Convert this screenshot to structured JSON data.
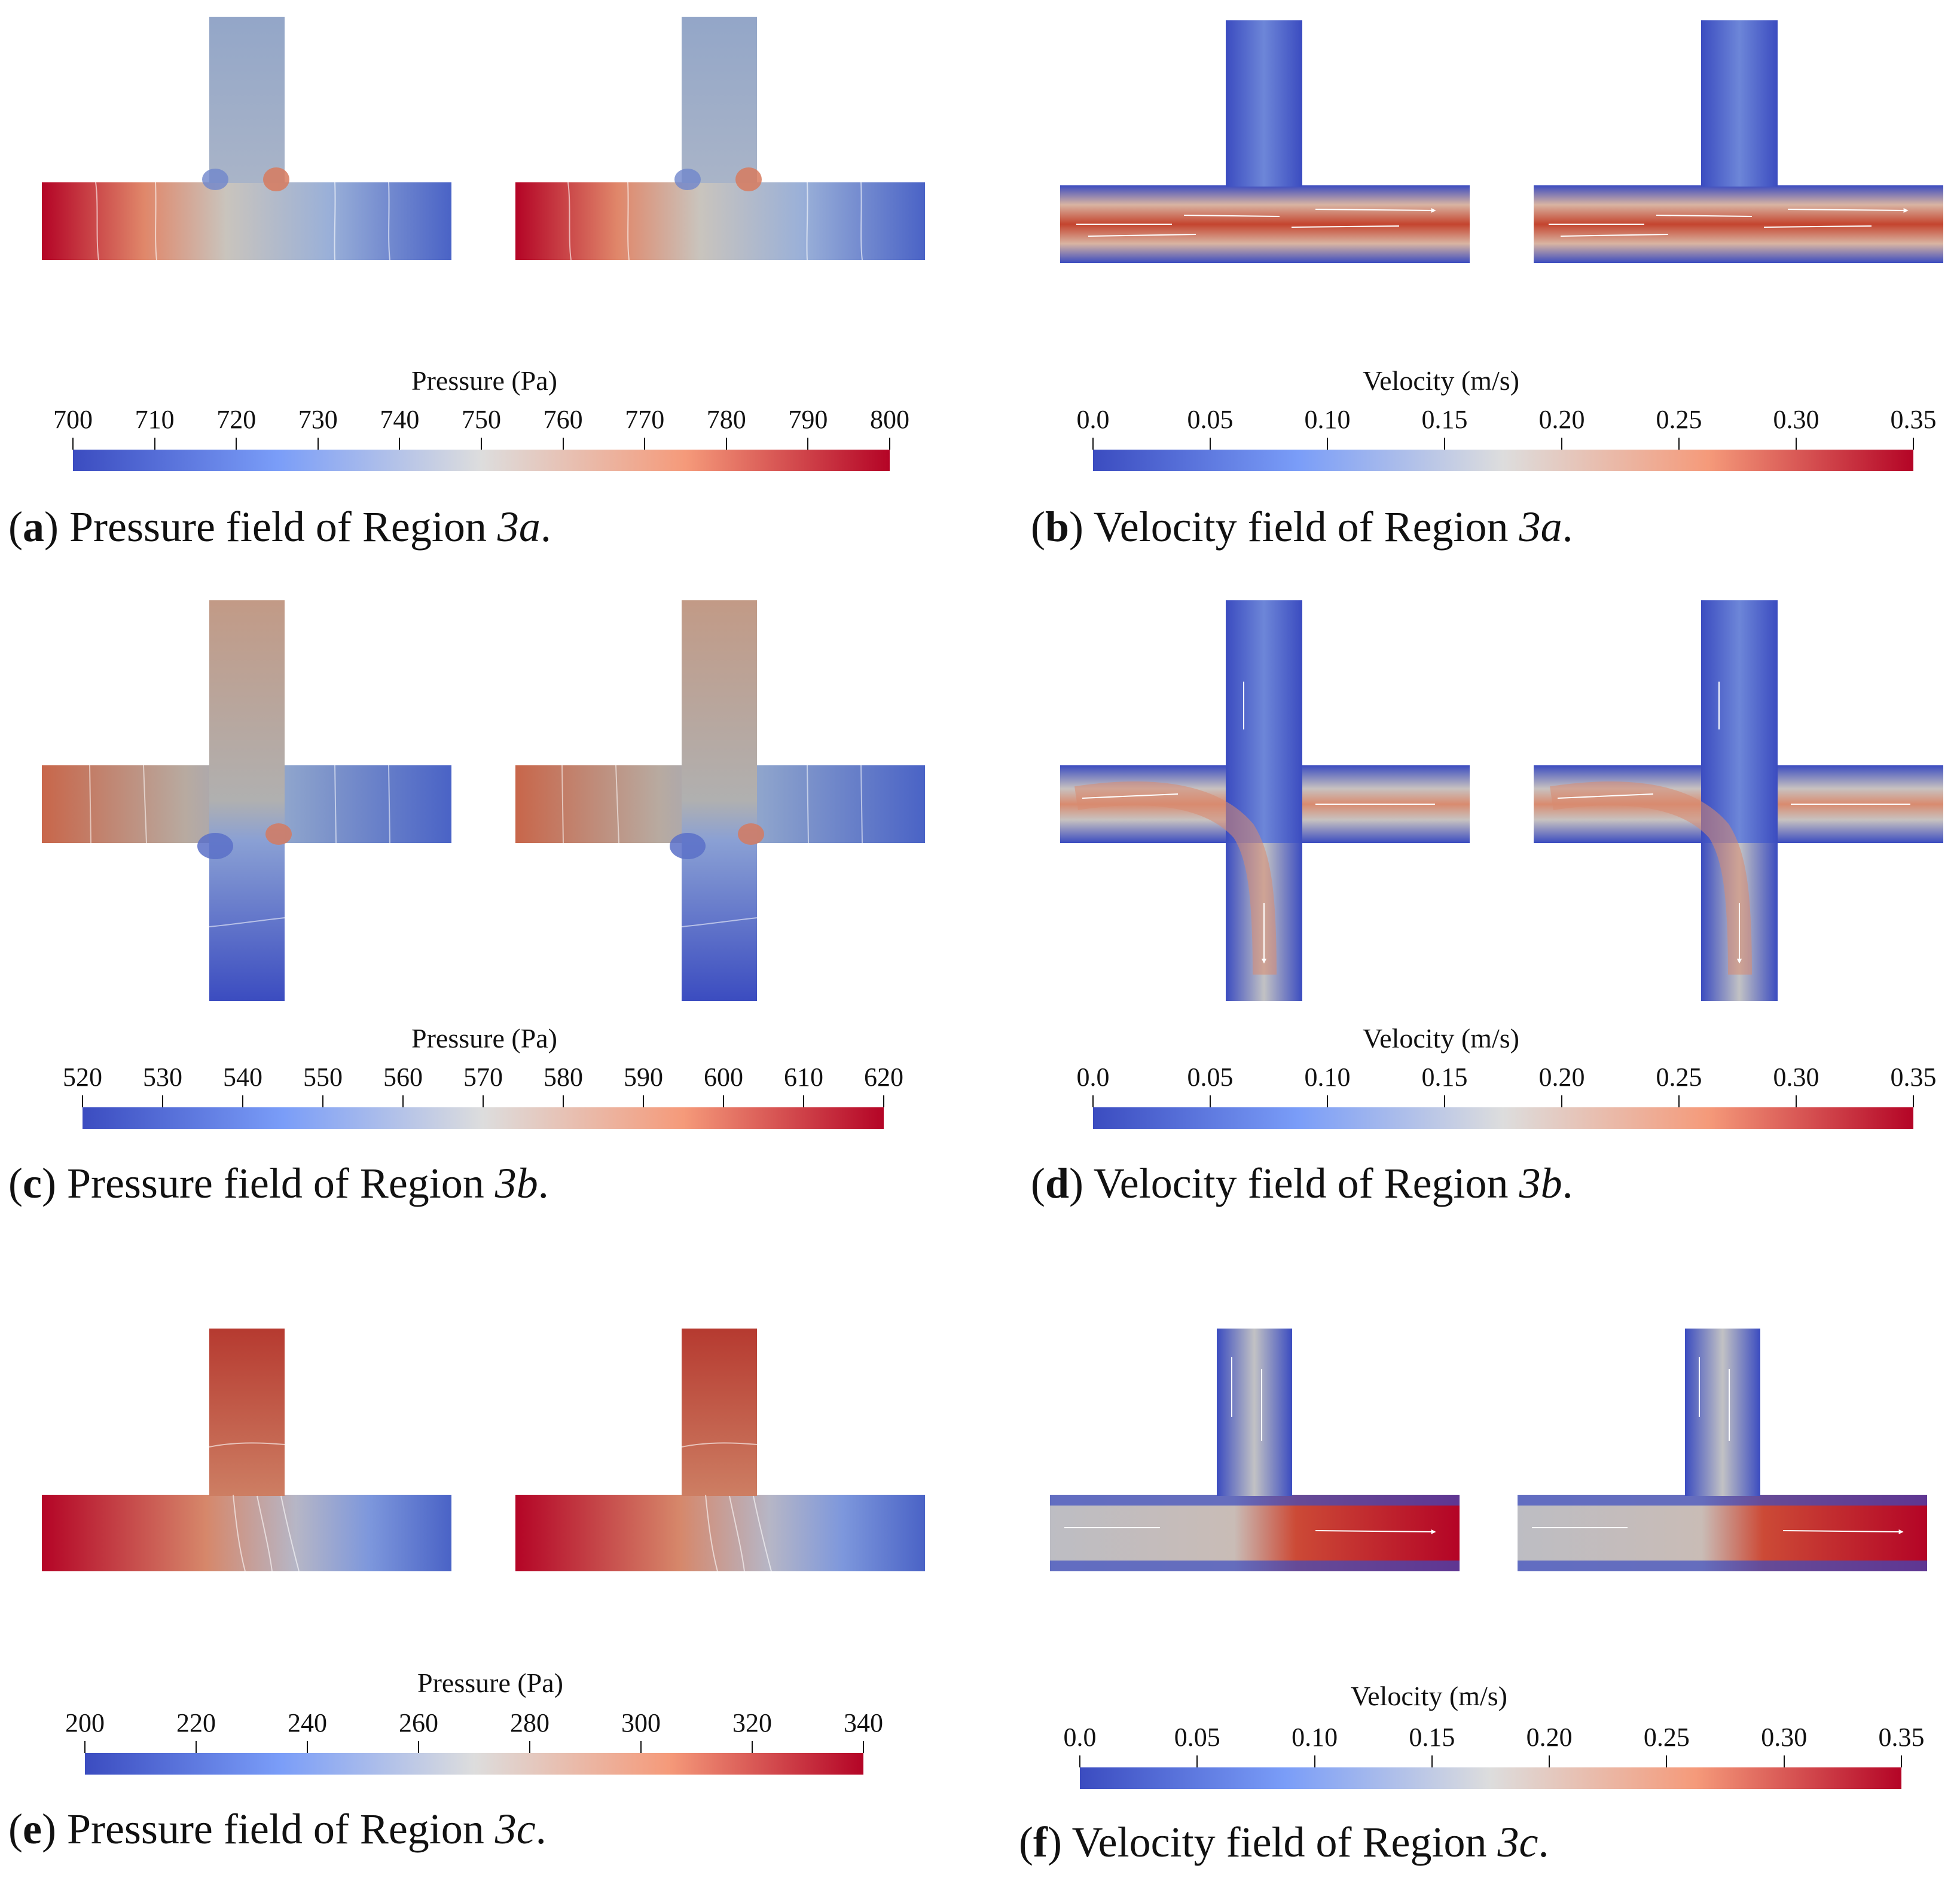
{
  "colors": {
    "low": "#3b4cc0",
    "mid": "#dddddd",
    "high": "#b40426"
  },
  "panels": [
    {
      "id": "a",
      "letter": "a",
      "caption_text": " Pressure field of Region ",
      "region": "3a",
      "field": "pressure",
      "geometry": "tee-up",
      "colorbar": {
        "title": "Pressure (Pa)",
        "ticks": [
          "700",
          "710",
          "720",
          "730",
          "740",
          "750",
          "760",
          "770",
          "780",
          "790",
          "800"
        ]
      }
    },
    {
      "id": "b",
      "letter": "b",
      "caption_text": " Velocity field of Region ",
      "region": "3a",
      "field": "velocity",
      "geometry": "tee-up",
      "colorbar": {
        "title": "Velocity (m/s)",
        "ticks": [
          "0.0",
          "0.05",
          "0.10",
          "0.15",
          "0.20",
          "0.25",
          "0.30",
          "0.35"
        ]
      }
    },
    {
      "id": "c",
      "letter": "c",
      "caption_text": " Pressure field of Region ",
      "region": "3b",
      "field": "pressure",
      "geometry": "cross",
      "colorbar": {
        "title": "Pressure (Pa)",
        "ticks": [
          "520",
          "530",
          "540",
          "550",
          "560",
          "570",
          "580",
          "590",
          "600",
          "610",
          "620"
        ]
      }
    },
    {
      "id": "d",
      "letter": "d",
      "caption_text": " Velocity field of Region ",
      "region": "3b",
      "field": "velocity",
      "geometry": "cross",
      "colorbar": {
        "title": "Velocity (m/s)",
        "ticks": [
          "0.0",
          "0.05",
          "0.10",
          "0.15",
          "0.20",
          "0.25",
          "0.30",
          "0.35"
        ]
      }
    },
    {
      "id": "e",
      "letter": "e",
      "caption_text": " Pressure field of Region ",
      "region": "3c",
      "field": "pressure",
      "geometry": "tee-up",
      "colorbar": {
        "title": "Pressure (Pa)",
        "ticks": [
          "200",
          "220",
          "240",
          "260",
          "280",
          "300",
          "320",
          "340"
        ]
      }
    },
    {
      "id": "f",
      "letter": "f",
      "caption_text": " Velocity field of Region ",
      "region": "3c",
      "field": "velocity",
      "geometry": "tee-up",
      "colorbar": {
        "title": "Velocity (m/s)",
        "ticks": [
          "0.0",
          "0.05",
          "0.10",
          "0.15",
          "0.20",
          "0.25",
          "0.30",
          "0.35"
        ]
      }
    }
  ]
}
